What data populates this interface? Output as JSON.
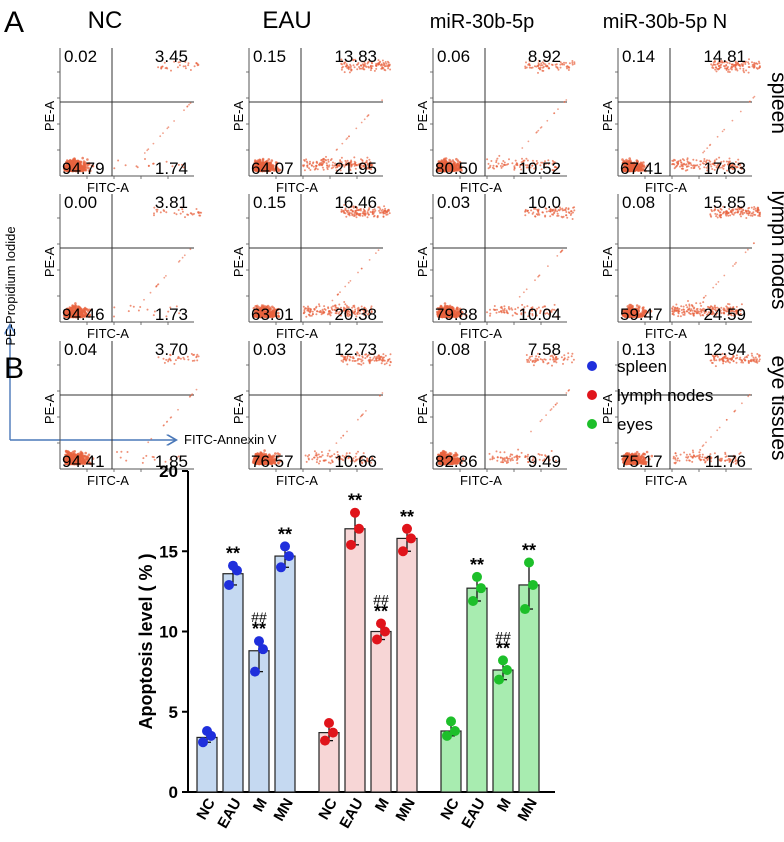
{
  "panel_a": {
    "letter": "A",
    "columns": [
      "NC",
      "EAU",
      "miR-30b-5p",
      "miR-30b-5p N"
    ],
    "rows": [
      "spleen",
      "lymph nodes",
      "eye tissues"
    ],
    "plot_xlabel": "FITC-A",
    "plot_ylabel": "PE-A",
    "axis_y_title": "PE-Propidium Iodide",
    "axis_x_title": "FITC-Annexin V",
    "quadrants": [
      [
        {
          "ul": "0.02",
          "ur": "3.45",
          "ll": "94.79",
          "lr": "1.74"
        },
        {
          "ul": "0.15",
          "ur": "13.83",
          "ll": "64.07",
          "lr": "21.95"
        },
        {
          "ul": "0.06",
          "ur": "8.92",
          "ll": "80.50",
          "lr": "10.52"
        },
        {
          "ul": "0.14",
          "ur": "14.81",
          "ll": "67.41",
          "lr": "17.63"
        }
      ],
      [
        {
          "ul": "0.00",
          "ur": "3.81",
          "ll": "94.46",
          "lr": "1.73"
        },
        {
          "ul": "0.15",
          "ur": "16.46",
          "ll": "63.01",
          "lr": "20.38"
        },
        {
          "ul": "0.03",
          "ur": "10.0",
          "ll": "79.88",
          "lr": "10.04"
        },
        {
          "ul": "0.08",
          "ur": "15.85",
          "ll": "59.47",
          "lr": "24.59"
        }
      ],
      [
        {
          "ul": "0.04",
          "ur": "3.70",
          "ll": "94.41",
          "lr": "1.85"
        },
        {
          "ul": "0.03",
          "ur": "12.73",
          "ll": "76.57",
          "lr": "10.66"
        },
        {
          "ul": "0.08",
          "ur": "7.58",
          "ll": "82.86",
          "lr": "9.49"
        },
        {
          "ul": "0.13",
          "ur": "12.94",
          "ll": "75.17",
          "lr": "11.76"
        }
      ]
    ],
    "dot_color": "#e8633f"
  },
  "chart_data": {
    "type": "bar",
    "letter": "B",
    "ylabel": "Apoptosis level ( % )",
    "ylim": [
      0,
      20
    ],
    "yticks": [
      0,
      5,
      10,
      15,
      20
    ],
    "categories": [
      "NC",
      "EAU",
      "M",
      "MN"
    ],
    "series": [
      {
        "name": "spleen",
        "color": "#1f2fdc",
        "fill": "#c5d9f1",
        "values": [
          3.4,
          13.6,
          8.8,
          14.7
        ],
        "points": [
          [
            3.1,
            3.5,
            3.8
          ],
          [
            12.9,
            13.8,
            14.1
          ],
          [
            7.5,
            8.9,
            9.4
          ],
          [
            14.0,
            14.7,
            15.3
          ]
        ],
        "annotations": [
          "",
          "**",
          "##\n**",
          "**"
        ]
      },
      {
        "name": "lymph nodes",
        "color": "#e0141b",
        "fill": "#f7d6d6",
        "values": [
          3.7,
          16.4,
          10.0,
          15.8
        ],
        "points": [
          [
            3.2,
            3.7,
            4.3
          ],
          [
            15.4,
            16.4,
            17.4
          ],
          [
            9.5,
            10.0,
            10.5
          ],
          [
            15.0,
            15.8,
            16.4
          ]
        ],
        "annotations": [
          "",
          "**",
          "##\n**",
          "**"
        ]
      },
      {
        "name": "eyes",
        "color": "#1dbf2a",
        "fill": "#a8ecb0",
        "values": [
          3.8,
          12.7,
          7.6,
          12.9
        ],
        "points": [
          [
            3.5,
            3.8,
            4.4
          ],
          [
            11.9,
            12.7,
            13.4
          ],
          [
            7.0,
            7.6,
            8.2
          ],
          [
            11.4,
            12.9,
            14.3
          ]
        ],
        "annotations": [
          "",
          "**",
          "##\n**",
          "**"
        ]
      }
    ],
    "legend": [
      "spleen",
      "lymph nodes",
      "eyes"
    ],
    "legend_position": "top-right"
  }
}
